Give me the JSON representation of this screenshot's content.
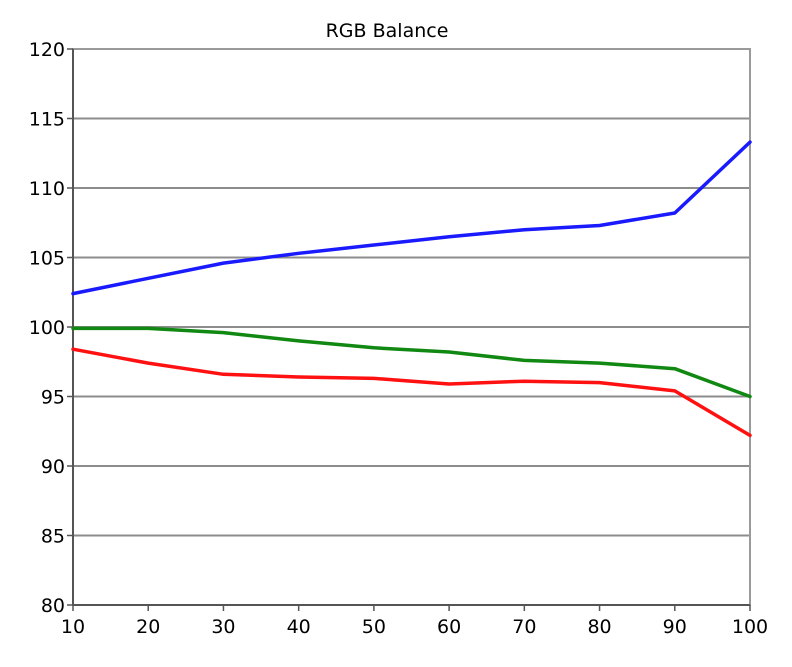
{
  "chart_data": {
    "type": "line",
    "title": "RGB Balance",
    "xlabel": "",
    "ylabel": "",
    "x": [
      10,
      20,
      30,
      40,
      50,
      60,
      70,
      80,
      90,
      100
    ],
    "xlim": [
      10,
      100
    ],
    "ylim": [
      80,
      120
    ],
    "x_ticks": [
      "10",
      "20",
      "30",
      "40",
      "50",
      "60",
      "70",
      "80",
      "90",
      "100"
    ],
    "y_ticks": [
      "80",
      "85",
      "90",
      "95",
      "100",
      "105",
      "110",
      "115",
      "120"
    ],
    "grid": true,
    "legend": "none",
    "series": [
      {
        "color": "#1a1aff",
        "values": [
          102.4,
          103.5,
          104.6,
          105.3,
          105.9,
          106.5,
          107.0,
          107.3,
          108.2,
          113.3
        ]
      },
      {
        "color": "#118811",
        "values": [
          99.9,
          99.9,
          99.6,
          99.0,
          98.5,
          98.2,
          97.6,
          97.4,
          97.0,
          95.0
        ]
      },
      {
        "color": "#ff1111",
        "values": [
          98.4,
          97.4,
          96.6,
          96.4,
          96.3,
          95.9,
          96.1,
          96.0,
          95.4,
          92.2
        ]
      }
    ]
  }
}
